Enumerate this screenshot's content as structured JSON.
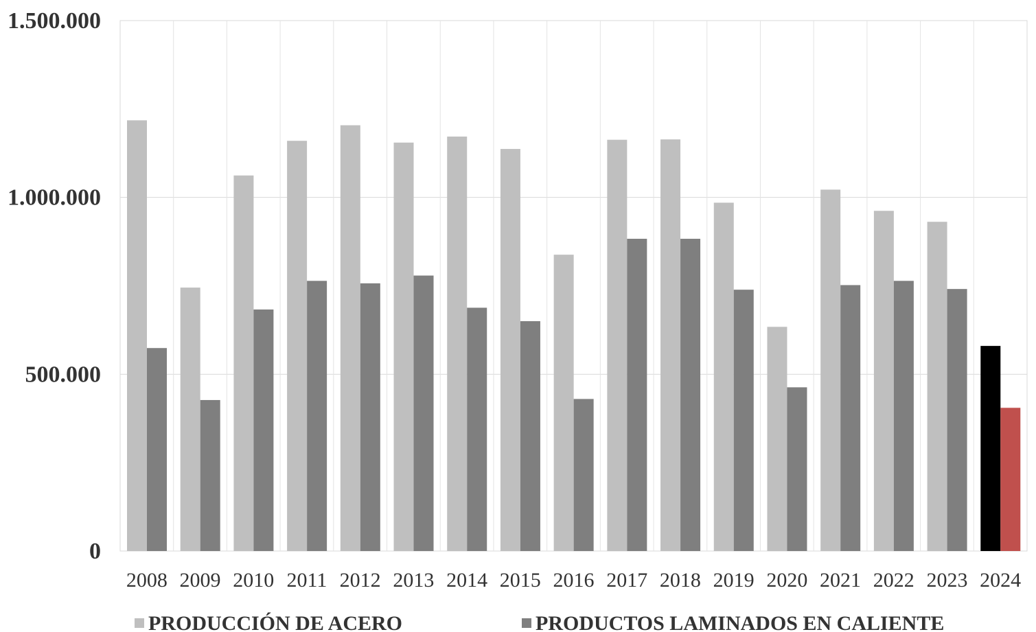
{
  "chart_data": {
    "type": "bar",
    "categories": [
      "2008",
      "2009",
      "2010",
      "2011",
      "2012",
      "2013",
      "2014",
      "2015",
      "2016",
      "2017",
      "2018",
      "2019",
      "2020",
      "2021",
      "2022",
      "2023",
      "2024"
    ],
    "series": [
      {
        "name": "PRODUCCIÓN DE ACERO",
        "color": "#bfbfbf",
        "values": [
          1218000,
          745000,
          1062000,
          1160000,
          1204000,
          1155000,
          1172000,
          1137000,
          838000,
          1163000,
          1164000,
          985000,
          634000,
          1022000,
          962000,
          931000,
          580000
        ]
      },
      {
        "name": "PRODUCTOS LAMINADOS EN CALIENTE",
        "color": "#7f7f7f",
        "values": [
          574000,
          427000,
          683000,
          764000,
          757000,
          779000,
          688000,
          650000,
          430000,
          883000,
          883000,
          739000,
          463000,
          752000,
          764000,
          741000,
          405000
        ]
      }
    ],
    "highlight": {
      "category": "2024",
      "colors": [
        "#000000",
        "#c0504d"
      ]
    },
    "ylim": [
      0,
      1500000
    ],
    "yticks": [
      {
        "value": 0,
        "label": "0"
      },
      {
        "value": 500000,
        "label": "500.000"
      },
      {
        "value": 1000000,
        "label": "1.000.000"
      },
      {
        "value": 1500000,
        "label": "1.500.000"
      }
    ],
    "grid": true,
    "legend_position": "bottom-left",
    "title": "",
    "xlabel": "",
    "ylabel": ""
  }
}
